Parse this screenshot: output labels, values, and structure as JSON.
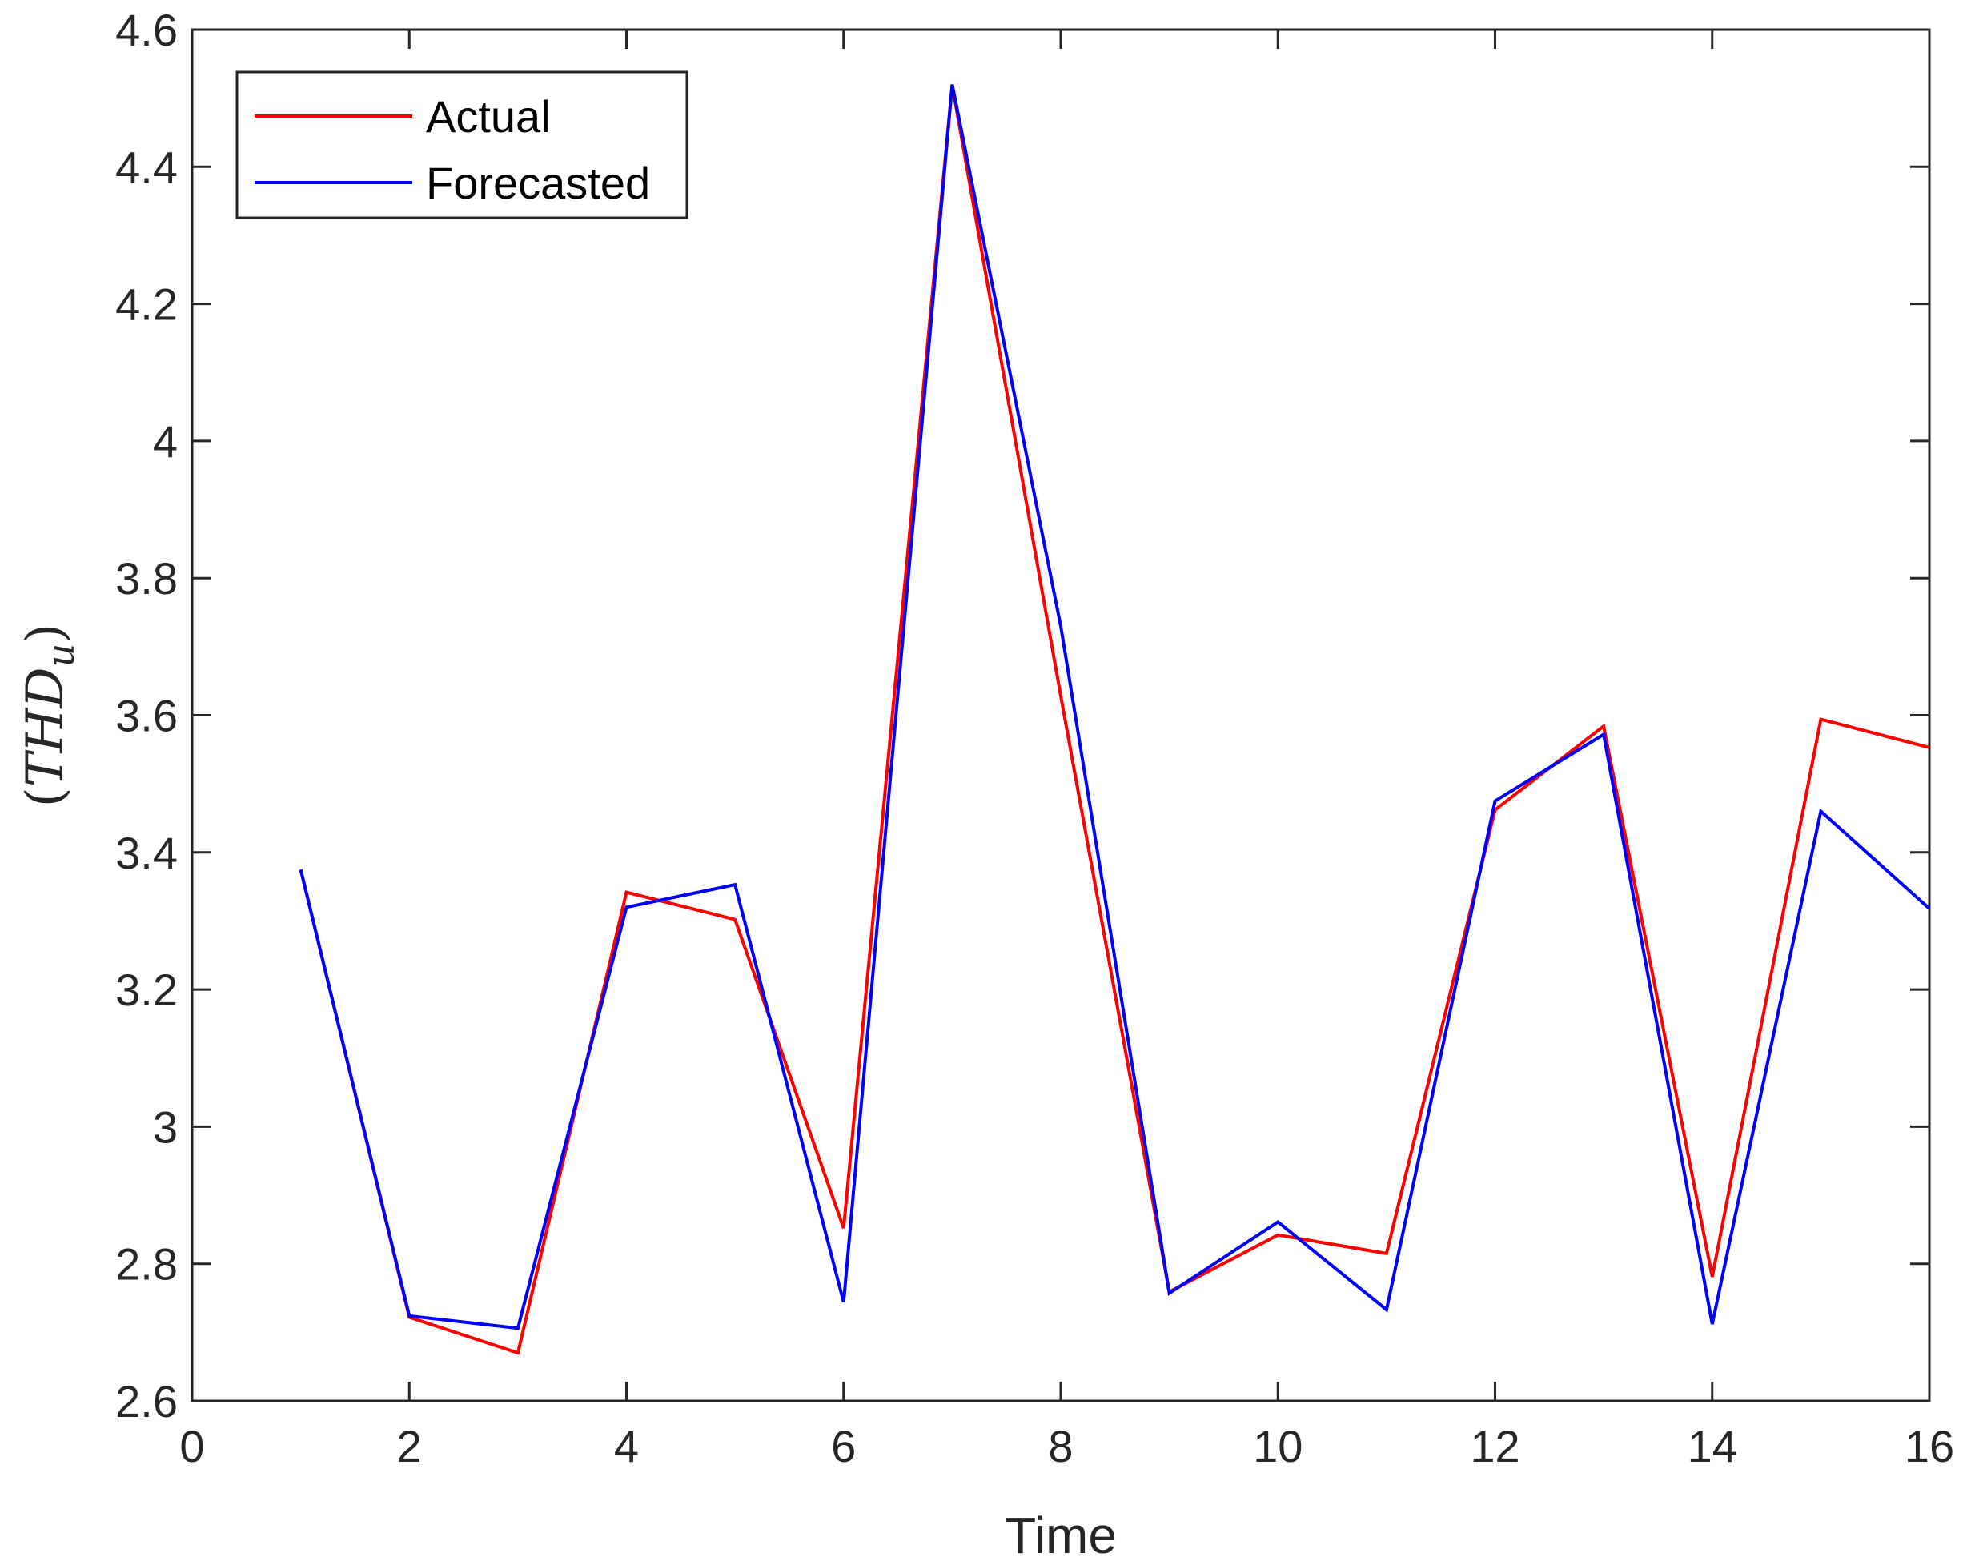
{
  "chart_data": {
    "type": "line",
    "title": "",
    "xlabel": "Time",
    "ylabel": "(THD_u)",
    "ylabel_main": "THD",
    "ylabel_sub": "u",
    "xlim": [
      0,
      16
    ],
    "ylim": [
      2.6,
      4.6
    ],
    "xticks": [
      0,
      2,
      4,
      6,
      8,
      10,
      12,
      14,
      16
    ],
    "yticks": [
      2.6,
      2.8,
      3,
      3.2,
      3.4,
      3.6,
      3.8,
      4,
      4.2,
      4.4,
      4.6
    ],
    "xtick_labels": [
      "0",
      "2",
      "4",
      "6",
      "8",
      "10",
      "12",
      "14",
      "16"
    ],
    "ytick_labels": [
      "2.6",
      "2.8",
      "3",
      "3.2",
      "3.4",
      "3.6",
      "3.8",
      "4",
      "4.2",
      "4.4",
      "4.6"
    ],
    "grid": false,
    "legend_position": "top-left",
    "x": [
      1,
      2,
      3,
      4,
      5,
      6,
      7,
      8,
      9,
      10,
      11,
      12,
      13,
      14,
      15,
      16
    ],
    "series": [
      {
        "name": "Actual",
        "color": "#ff0000",
        "values": [
          3.375,
          2.722,
          2.67,
          3.342,
          3.302,
          2.852,
          4.519,
          3.628,
          2.759,
          2.842,
          2.815,
          3.462,
          3.584,
          2.781,
          3.594,
          3.553
        ]
      },
      {
        "name": "Forecasted",
        "color": "#0000ff",
        "values": [
          3.375,
          2.724,
          2.706,
          3.32,
          3.353,
          2.744,
          4.52,
          3.73,
          2.757,
          2.861,
          2.733,
          3.475,
          3.572,
          2.712,
          3.46,
          3.318
        ]
      }
    ]
  }
}
